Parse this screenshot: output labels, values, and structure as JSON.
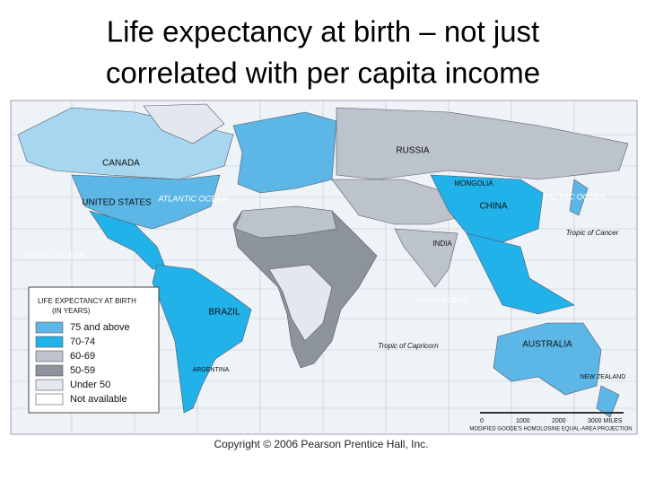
{
  "title": [
    "Life expectancy at birth – not just",
    "correlated with per capita income"
  ],
  "map": {
    "labels": [
      "CANADA",
      "UNITED STATES",
      "ATLANTIC OCEAN",
      "PACIFIC OCEAN",
      "BRAZIL",
      "ARGENTINA",
      "RUSSIA",
      "MONGOLIA",
      "CHINA",
      "INDIA",
      "INDIAN OCEAN",
      "AUSTRALIA",
      "Tropic of Cancer",
      "Tropic of Capricorn",
      "PACIFIC OCEAN",
      "NEW ZEALAND"
    ]
  },
  "legend": {
    "title": "LIFE EXPECTANCY AT BIRTH",
    "subtitle": "(IN YEARS)",
    "items": [
      {
        "label": "75 and above",
        "color": "#5cb6e6"
      },
      {
        "label": "70-74",
        "color": "#22b2ea"
      },
      {
        "label": "60-69",
        "color": "#bcc3cc"
      },
      {
        "label": "50-59",
        "color": "#8d939c"
      },
      {
        "label": "Under 50",
        "color": "#e3e8ee"
      },
      {
        "label": "Not available",
        "color": "#ffffff"
      }
    ]
  },
  "scale": {
    "ticks": [
      "0",
      "1000",
      "2000",
      "3000 MILES"
    ],
    "projection": "MODIFIED GOODE'S HOMOLOSINE EQUAL-AREA PROJECTION"
  },
  "copyright": "Copyright © 2006 Pearson Prentice Hall, Inc."
}
